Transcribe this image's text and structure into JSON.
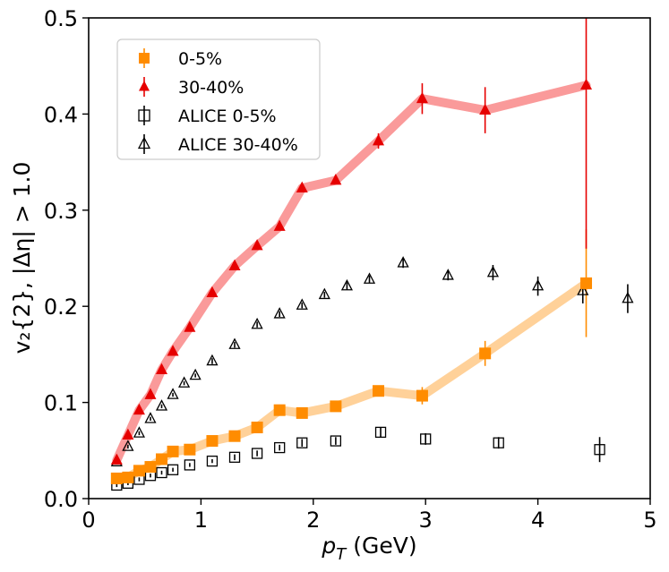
{
  "chart_data": {
    "type": "scatter",
    "title": "",
    "xlabel": "p_T (GeV)",
    "ylabel": "v₂{2}, |Δη| > 1.0",
    "xlim": [
      0,
      5
    ],
    "ylim": [
      0,
      0.5
    ],
    "xticks": [
      "0",
      "1",
      "2",
      "3",
      "4",
      "5"
    ],
    "yticks": [
      "0.0",
      "0.1",
      "0.2",
      "0.3",
      "0.4",
      "0.5"
    ],
    "grid": false,
    "legend_position": "top-left",
    "series": [
      {
        "name": "0-5%",
        "marker": "filled-square",
        "color": "#ff8c00",
        "band_color": "#ffd199",
        "x": [
          0.25,
          0.35,
          0.45,
          0.55,
          0.65,
          0.75,
          0.9,
          1.1,
          1.3,
          1.5,
          1.7,
          1.9,
          2.2,
          2.58,
          2.97,
          3.53,
          4.43
        ],
        "y": [
          0.021,
          0.022,
          0.029,
          0.033,
          0.041,
          0.049,
          0.051,
          0.06,
          0.065,
          0.074,
          0.092,
          0.089,
          0.096,
          0.112,
          0.107,
          0.151,
          0.224
        ],
        "err": [
          0.002,
          0.002,
          0.002,
          0.002,
          0.002,
          0.002,
          0.002,
          0.003,
          0.003,
          0.003,
          0.003,
          0.003,
          0.003,
          0.004,
          0.009,
          0.013,
          0.056
        ]
      },
      {
        "name": "30-40%",
        "marker": "filled-triangle",
        "color": "#e60000",
        "band_color": "#fa9a9a",
        "x": [
          0.25,
          0.35,
          0.45,
          0.55,
          0.65,
          0.75,
          0.9,
          1.1,
          1.3,
          1.5,
          1.7,
          1.9,
          2.2,
          2.58,
          2.97,
          3.53,
          4.43
        ],
        "y": [
          0.04,
          0.066,
          0.092,
          0.108,
          0.134,
          0.153,
          0.178,
          0.214,
          0.242,
          0.263,
          0.283,
          0.323,
          0.331,
          0.372,
          0.416,
          0.404,
          0.43
        ],
        "err": [
          0.002,
          0.002,
          0.002,
          0.002,
          0.002,
          0.002,
          0.002,
          0.002,
          0.002,
          0.003,
          0.003,
          0.003,
          0.003,
          0.008,
          0.016,
          0.024,
          0.17
        ]
      },
      {
        "name": "ALICE 0-5%",
        "marker": "open-square",
        "color": "#000000",
        "x": [
          0.25,
          0.35,
          0.45,
          0.55,
          0.65,
          0.75,
          0.9,
          1.1,
          1.3,
          1.5,
          1.7,
          1.9,
          2.2,
          2.6,
          3.0,
          3.65,
          4.55
        ],
        "y": [
          0.014,
          0.016,
          0.02,
          0.024,
          0.027,
          0.03,
          0.035,
          0.039,
          0.043,
          0.047,
          0.053,
          0.058,
          0.06,
          0.069,
          0.062,
          0.058,
          0.051
        ],
        "err": [
          0.002,
          0.002,
          0.002,
          0.002,
          0.002,
          0.002,
          0.002,
          0.002,
          0.003,
          0.003,
          0.003,
          0.004,
          0.004,
          0.005,
          0.006,
          0.006,
          0.013
        ]
      },
      {
        "name": "ALICE 30-40%",
        "marker": "open-triangle",
        "color": "#000000",
        "x": [
          0.25,
          0.35,
          0.45,
          0.55,
          0.65,
          0.75,
          0.85,
          0.95,
          1.1,
          1.3,
          1.5,
          1.7,
          1.9,
          2.1,
          2.3,
          2.5,
          2.8,
          3.2,
          3.6,
          4.0,
          4.4,
          4.8
        ],
        "y": [
          0.038,
          0.054,
          0.068,
          0.083,
          0.096,
          0.108,
          0.12,
          0.128,
          0.143,
          0.16,
          0.181,
          0.192,
          0.201,
          0.212,
          0.221,
          0.228,
          0.245,
          0.232,
          0.235,
          0.221,
          0.216,
          0.208
        ],
        "err": [
          0.002,
          0.002,
          0.002,
          0.002,
          0.002,
          0.002,
          0.002,
          0.002,
          0.003,
          0.003,
          0.003,
          0.003,
          0.003,
          0.003,
          0.004,
          0.004,
          0.005,
          0.005,
          0.008,
          0.01,
          0.013,
          0.015
        ]
      }
    ]
  }
}
